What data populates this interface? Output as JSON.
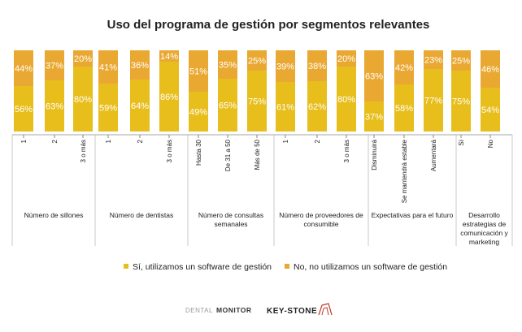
{
  "chart_data": {
    "type": "bar",
    "stacked": true,
    "percent": true,
    "title": "Uso del programa de gestión por segmentos relevantes",
    "groups": [
      {
        "label": "Número de sillones",
        "categories": [
          "1",
          "2",
          "3 o más"
        ]
      },
      {
        "label": "Número de dentistas",
        "categories": [
          "1",
          "2",
          "3 o más"
        ]
      },
      {
        "label": "Número de consultas semanales",
        "categories": [
          "Hasta 30",
          "De 31 a 50",
          "Más de 50"
        ]
      },
      {
        "label": "Número de proveedores de consumible",
        "categories": [
          "1",
          "2",
          "3 o más"
        ]
      },
      {
        "label": "Expectativas para el futuro",
        "categories": [
          "Disminuirá",
          "Se mantendrá estable",
          "Aumentará"
        ]
      },
      {
        "label": "Desarrollo estrategias de comunicación y marketing",
        "categories": [
          "Sí",
          "No"
        ]
      }
    ],
    "series": [
      {
        "name": "Sí, utilizamos un software de gestión",
        "color": "#E8BE1C",
        "values": [
          56,
          63,
          80,
          59,
          64,
          86,
          49,
          65,
          75,
          61,
          62,
          80,
          37,
          58,
          77,
          75,
          54
        ],
        "labels": [
          "56%",
          "63%",
          "80%",
          "59%",
          "64%",
          "86%",
          "49%",
          "65%",
          "75%",
          "61%",
          "62%",
          "80%",
          "37%",
          "58%",
          "77%",
          "75%",
          "54%"
        ]
      },
      {
        "name": "No, no utilizamos un software de gestión",
        "color": "#E9A832",
        "values": [
          44,
          37,
          20,
          41,
          36,
          14,
          51,
          35,
          25,
          39,
          38,
          20,
          63,
          42,
          23,
          25,
          46
        ],
        "labels": [
          "44%",
          "37%",
          "20%",
          "41%",
          "36%",
          "14%",
          "51%",
          "35%",
          "25%",
          "39%",
          "38%",
          "20%",
          "63%",
          "42%",
          "23%",
          "25%",
          "46%"
        ]
      }
    ],
    "ylim": [
      0,
      100
    ],
    "legend_position": "bottom"
  },
  "footer": {
    "logo_left_a": "DENTAL",
    "logo_left_b": "MONITOR",
    "logo_right": "KEY-STONE"
  }
}
